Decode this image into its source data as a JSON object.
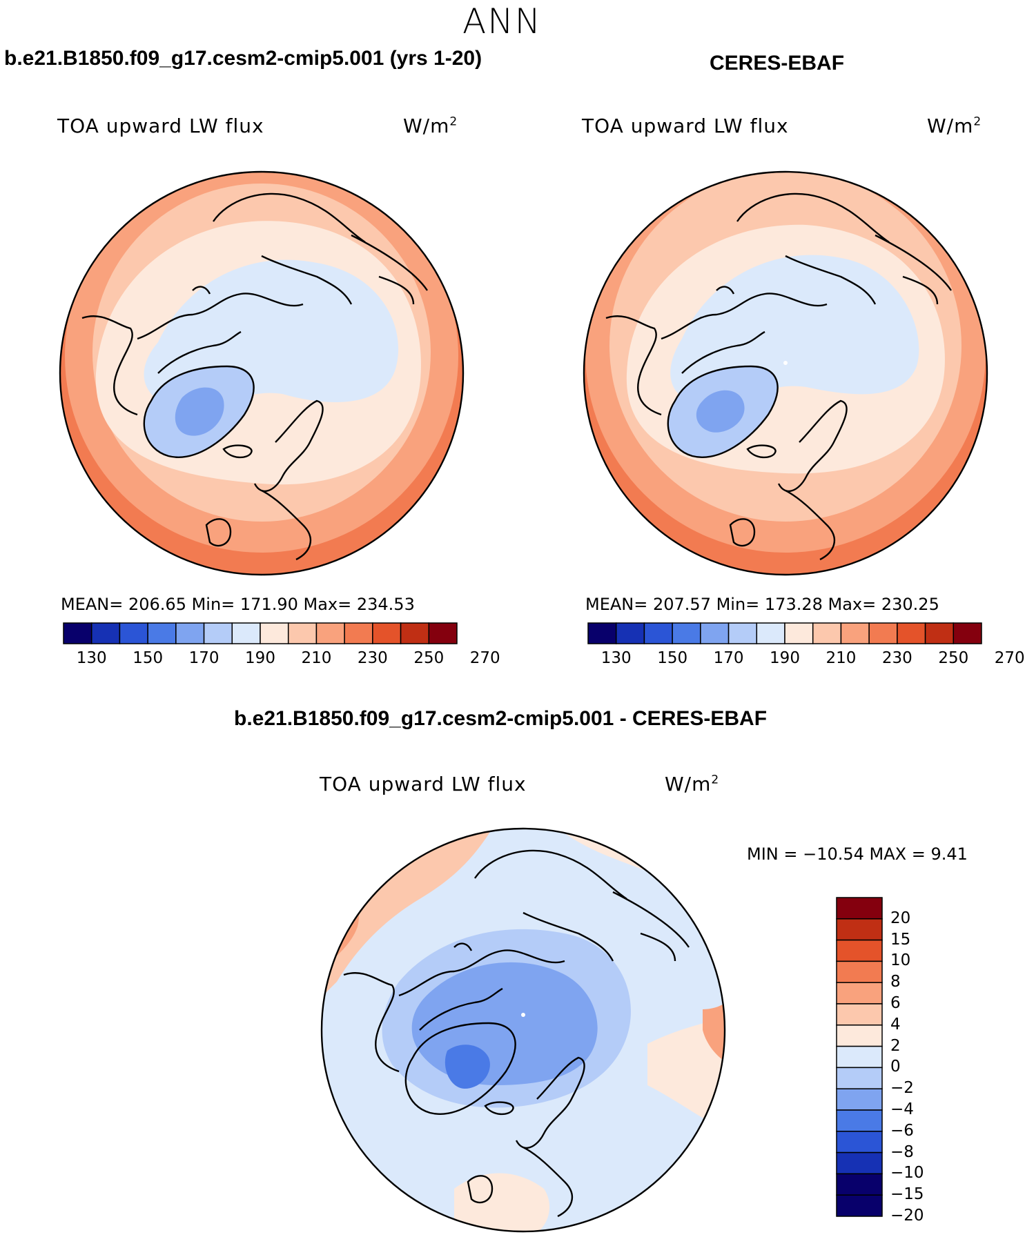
{
  "season": "ANN",
  "colors": {
    "ocean": "#ffffff",
    "coast": "#000000"
  },
  "panels": [
    {
      "id": "model",
      "title": "b.e21.B1850.f09_g17.cesm2-cmip5.001 (yrs 1-20)",
      "variable": "TOA upward LW flux",
      "units": "W/m",
      "units_sup": "2",
      "stats": "MEAN= 206.65   Min= 171.90   Max= 234.53",
      "colorbar": {
        "colors": [
          "#08006b",
          "#1631b4",
          "#2b55d6",
          "#4a7ae6",
          "#7fa4f0",
          "#b4ccf8",
          "#dbe9fb",
          "#fde9dc",
          "#fcc8ad",
          "#f9a27d",
          "#f27b51",
          "#e4532a",
          "#c02f14",
          "#84000e"
        ],
        "ticks": [
          "130",
          "150",
          "170",
          "190",
          "210",
          "230",
          "250",
          "270"
        ]
      }
    },
    {
      "id": "obs",
      "title": "CERES-EBAF",
      "variable": "TOA upward LW flux",
      "units": "W/m",
      "units_sup": "2",
      "stats": "MEAN= 207.57   Min= 173.28   Max= 230.25",
      "colorbar": {
        "colors": [
          "#08006b",
          "#1631b4",
          "#2b55d6",
          "#4a7ae6",
          "#7fa4f0",
          "#b4ccf8",
          "#dbe9fb",
          "#fde9dc",
          "#fcc8ad",
          "#f9a27d",
          "#f27b51",
          "#e4532a",
          "#c02f14",
          "#84000e"
        ],
        "ticks": [
          "130",
          "150",
          "170",
          "190",
          "210",
          "230",
          "250",
          "270"
        ]
      }
    }
  ],
  "difference": {
    "title": "b.e21.B1850.f09_g17.cesm2-cmip5.001 - CERES-EBAF",
    "variable": "TOA upward LW flux",
    "units": "W/m",
    "units_sup": "2",
    "stats": "MIN = −10.54 MAX =    9.41",
    "colorbar": {
      "colors": [
        "#84000e",
        "#c02f14",
        "#e4532a",
        "#f27b51",
        "#f9a27d",
        "#fcc8ad",
        "#fde9dc",
        "#dbe9fb",
        "#b4ccf8",
        "#7fa4f0",
        "#4a7ae6",
        "#2b55d6",
        "#1631b4",
        "#08006b"
      ],
      "ticks": [
        "20",
        "15",
        "10",
        "8",
        "6",
        "4",
        "2",
        "0",
        "−2",
        "−4",
        "−6",
        "−8",
        "−10",
        "−15",
        "−20"
      ]
    }
  }
}
